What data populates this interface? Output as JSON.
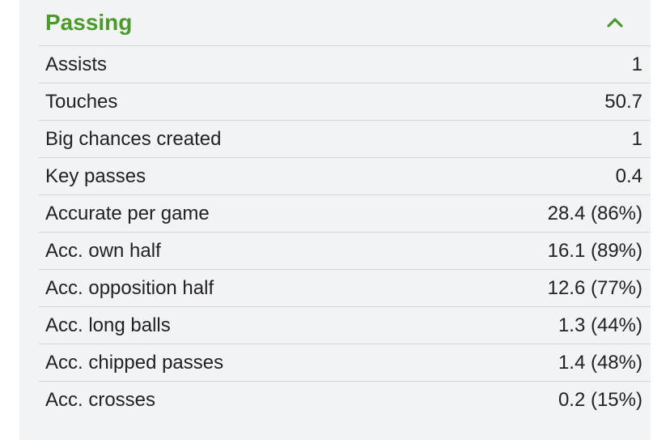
{
  "section": {
    "title": "Passing",
    "toggle_icon": "chevron-up-icon",
    "accent_color": "#4c9a2a"
  },
  "stats": [
    {
      "label": "Assists",
      "value": "1"
    },
    {
      "label": "Touches",
      "value": "50.7"
    },
    {
      "label": "Big chances created",
      "value": "1"
    },
    {
      "label": "Key passes",
      "value": "0.4"
    },
    {
      "label": "Accurate per game",
      "value": "28.4 (86%)"
    },
    {
      "label": "Acc. own half",
      "value": "16.1 (89%)"
    },
    {
      "label": "Acc. opposition half",
      "value": "12.6 (77%)"
    },
    {
      "label": "Acc. long balls",
      "value": "1.3 (44%)"
    },
    {
      "label": "Acc. chipped passes",
      "value": "1.4 (48%)"
    },
    {
      "label": "Acc. crosses",
      "value": "0.2 (15%)"
    }
  ]
}
